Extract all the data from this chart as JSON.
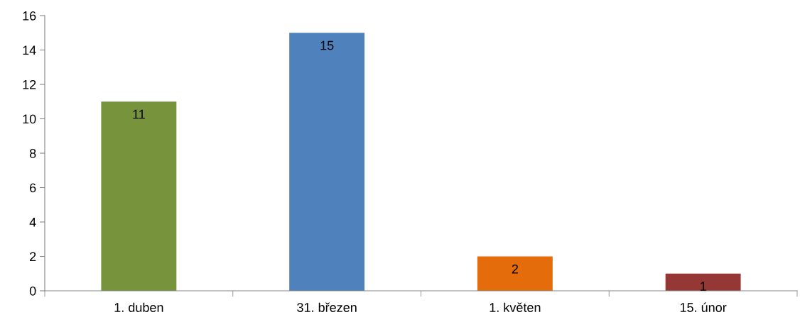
{
  "chart_data": {
    "type": "bar",
    "categories": [
      "1. duben",
      "31. březen",
      "1. květen",
      "15. únor"
    ],
    "values": [
      11,
      15,
      2,
      1
    ],
    "colors": [
      "#77933c",
      "#4f81bd",
      "#e46c0a",
      "#953735"
    ],
    "ylim": [
      0,
      16
    ],
    "yticks": [
      0,
      2,
      4,
      6,
      8,
      10,
      12,
      14,
      16
    ],
    "data_labels": true,
    "grid": false,
    "legend": false
  }
}
